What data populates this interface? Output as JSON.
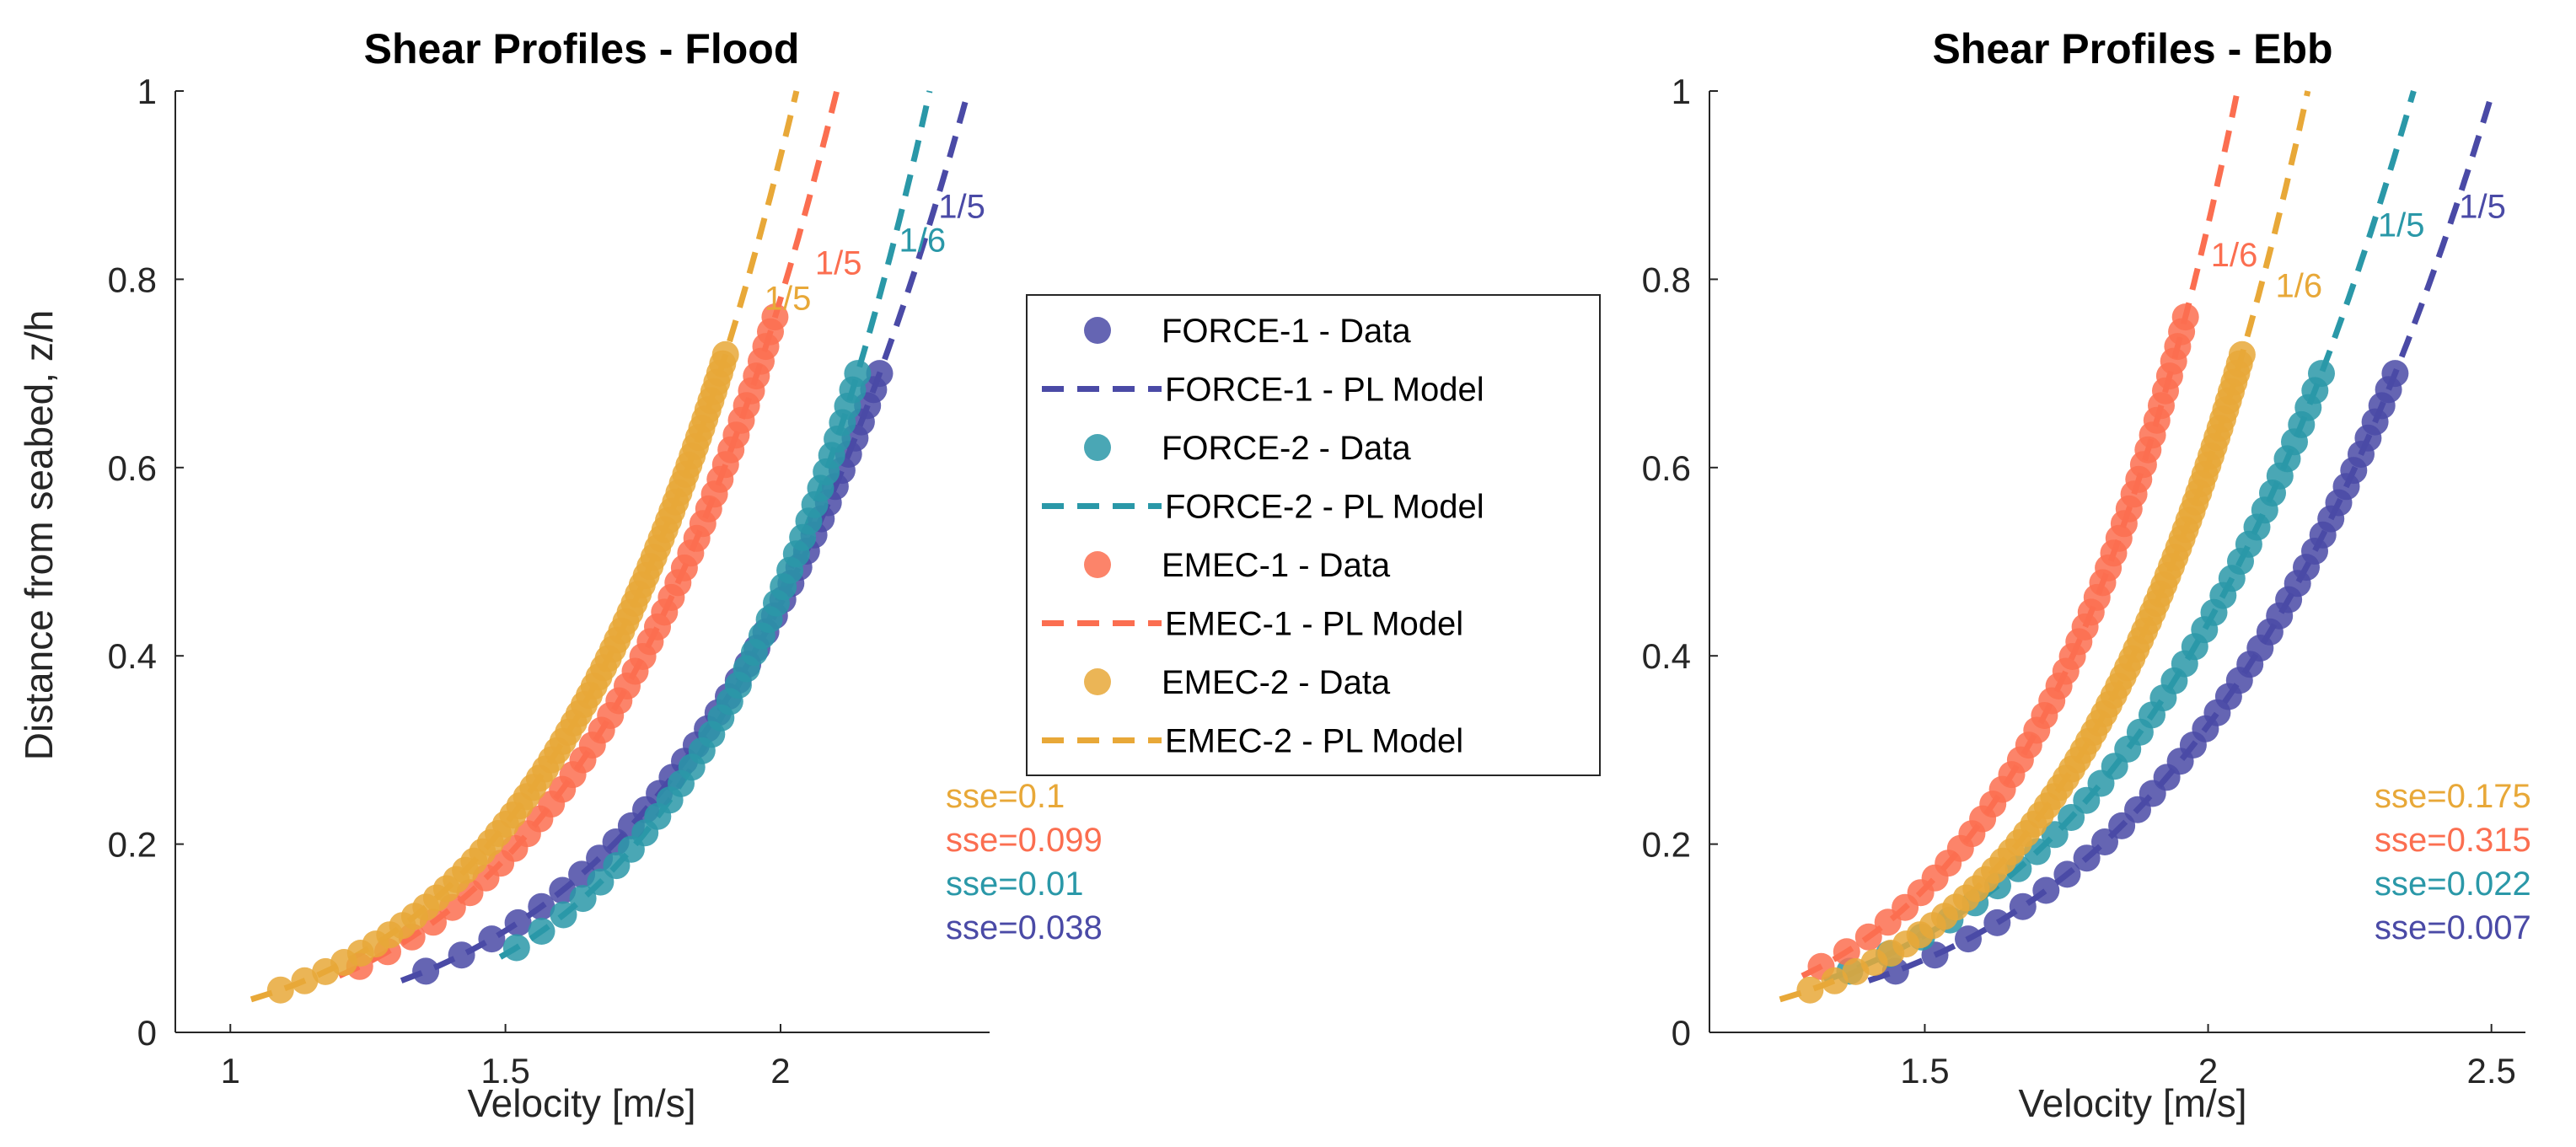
{
  "colors": {
    "force1": "#4a4aa6",
    "force2": "#2a98a8",
    "emec1": "#fb6e50",
    "emec2": "#e8a838"
  },
  "legend": {
    "items": [
      {
        "label": "FORCE-1 - Data",
        "kind": "marker",
        "series": "force1"
      },
      {
        "label": "FORCE-1 - PL Model",
        "kind": "dash",
        "series": "force1"
      },
      {
        "label": "FORCE-2 - Data",
        "kind": "marker",
        "series": "force2"
      },
      {
        "label": "FORCE-2 - PL Model",
        "kind": "dash",
        "series": "force2"
      },
      {
        "label": "EMEC-1 - Data",
        "kind": "marker",
        "series": "emec1"
      },
      {
        "label": "EMEC-1 - PL Model",
        "kind": "dash",
        "series": "emec1"
      },
      {
        "label": "EMEC-2 - Data",
        "kind": "marker",
        "series": "emec2"
      },
      {
        "label": "EMEC-2 - PL Model",
        "kind": "dash",
        "series": "emec2"
      }
    ]
  },
  "chart_data": [
    {
      "type": "scatter",
      "title": "Shear Profiles - Flood",
      "xlabel": "Velocity [m/s]",
      "ylabel": "Distance from seabed, z/h",
      "xlim": [
        0.9,
        2.38
      ],
      "ylim": [
        0,
        1
      ],
      "xticks": [
        "1",
        "1.5",
        "2"
      ],
      "xtick_values": [
        1,
        1.5,
        2
      ],
      "yticks": [
        "0",
        "0.2",
        "0.4",
        "0.6",
        "0.8",
        "1"
      ],
      "ytick_values": [
        0,
        0.2,
        0.4,
        0.6,
        0.8,
        1
      ],
      "series": [
        {
          "id": "force1",
          "name": "FORCE-1",
          "u_ref": 2.18,
          "z_ref": 0.7,
          "exponent": 0.2,
          "exponent_label": "1/5",
          "z_min": 0.065,
          "z_max": 0.7,
          "n_points": 38,
          "sse": "sse=0.038"
        },
        {
          "id": "force2",
          "name": "FORCE-2",
          "u_ref": 2.14,
          "z_ref": 0.7,
          "exponent": 0.1667,
          "exponent_label": "1/6",
          "z_min": 0.09,
          "z_max": 0.7,
          "n_points": 36,
          "sse": "sse=0.01"
        },
        {
          "id": "emec1",
          "name": "EMEC-1",
          "u_ref": 1.99,
          "z_ref": 0.76,
          "exponent": 0.2,
          "exponent_label": "1/5",
          "z_min": 0.07,
          "z_max": 0.76,
          "n_points": 45,
          "sse": "sse=0.099"
        },
        {
          "id": "emec2",
          "name": "EMEC-2",
          "u_ref": 1.9,
          "z_ref": 0.72,
          "exponent": 0.2,
          "exponent_label": "1/5",
          "z_min": 0.045,
          "z_max": 0.72,
          "n_points": 70,
          "sse": "sse=0.1"
        }
      ]
    },
    {
      "type": "scatter",
      "title": "Shear Profiles - Ebb",
      "xlabel": "Velocity [m/s]",
      "ylabel": "",
      "xlim": [
        1.12,
        2.56
      ],
      "ylim": [
        0,
        1
      ],
      "xticks": [
        "1.5",
        "2",
        "2.5"
      ],
      "xtick_values": [
        1.5,
        2,
        2.5
      ],
      "yticks": [
        "0",
        "0.2",
        "0.4",
        "0.6",
        "0.8",
        "1"
      ],
      "ytick_values": [
        0,
        0.2,
        0.4,
        0.6,
        0.8,
        1
      ],
      "series": [
        {
          "id": "force1",
          "name": "FORCE-1",
          "u_ref": 2.33,
          "z_ref": 0.7,
          "exponent": 0.2,
          "exponent_label": "1/5",
          "z_min": 0.065,
          "z_max": 0.7,
          "n_points": 38,
          "sse": "sse=0.007"
        },
        {
          "id": "force2",
          "name": "FORCE-2",
          "u_ref": 2.2,
          "z_ref": 0.7,
          "exponent": 0.2,
          "exponent_label": "1/5",
          "z_min": 0.065,
          "z_max": 0.7,
          "n_points": 36,
          "sse": "sse=0.022"
        },
        {
          "id": "emec1",
          "name": "EMEC-1",
          "u_ref": 1.96,
          "z_ref": 0.76,
          "exponent": 0.1667,
          "exponent_label": "1/6",
          "z_min": 0.07,
          "z_max": 0.76,
          "n_points": 45,
          "sse": "sse=0.315"
        },
        {
          "id": "emec2",
          "name": "EMEC-2",
          "u_ref": 2.06,
          "z_ref": 0.72,
          "exponent": 0.1667,
          "exponent_label": "1/6",
          "z_min": 0.045,
          "z_max": 0.72,
          "n_points": 70,
          "sse": "sse=0.175"
        }
      ]
    }
  ]
}
